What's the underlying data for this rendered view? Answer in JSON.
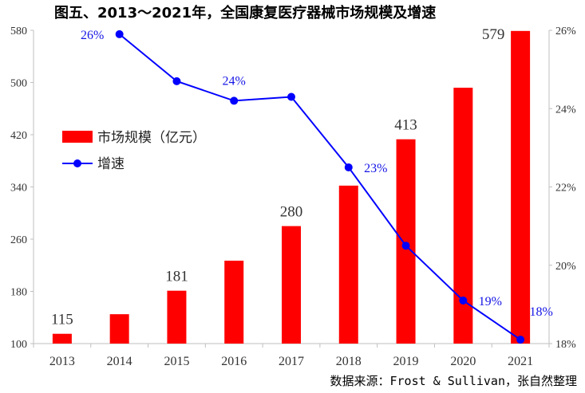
{
  "title": "图五、2013～2021年，全国康复医疗器械市场规模及增速",
  "source": "数据来源：Frost & Sullivan，张自然整理",
  "chart_data": {
    "type": "bar",
    "categories": [
      "2013",
      "2014",
      "2015",
      "2016",
      "2017",
      "2018",
      "2019",
      "2020",
      "2021"
    ],
    "series": [
      {
        "name": "市场规模（亿元）",
        "type": "bar",
        "axis": "left",
        "color": "#ff0000",
        "values": [
          115,
          145,
          181,
          227,
          280,
          342,
          413,
          492,
          579
        ]
      },
      {
        "name": "增速",
        "type": "line",
        "axis": "right",
        "color": "#0000ff",
        "values": [
          null,
          25.9,
          24.7,
          24.2,
          24.3,
          22.5,
          20.5,
          19.1,
          18.1
        ]
      }
    ],
    "bar_data_labels": [
      {
        "index": 0,
        "text": "115"
      },
      {
        "index": 2,
        "text": "181"
      },
      {
        "index": 4,
        "text": "280"
      },
      {
        "index": 6,
        "text": "413"
      },
      {
        "index": 8,
        "text": "579"
      }
    ],
    "line_data_labels": [
      {
        "index": 1,
        "text": "26%"
      },
      {
        "index": 3,
        "text": "24%"
      },
      {
        "index": 5,
        "text": "23%"
      },
      {
        "index": 7,
        "text": "19%"
      },
      {
        "index": 8,
        "text": "18%"
      }
    ],
    "y_left": {
      "min": 100,
      "max": 580,
      "ticks": [
        100,
        180,
        260,
        340,
        420,
        500,
        580
      ]
    },
    "y_right": {
      "min": 18,
      "max": 26,
      "ticks": [
        18,
        20,
        22,
        24,
        26
      ],
      "tick_labels": [
        "18%",
        "20%",
        "22%",
        "24%",
        "26%"
      ]
    },
    "legend": {
      "position": "left-middle",
      "entries": [
        "市场规模（亿元）",
        "增速"
      ]
    }
  }
}
